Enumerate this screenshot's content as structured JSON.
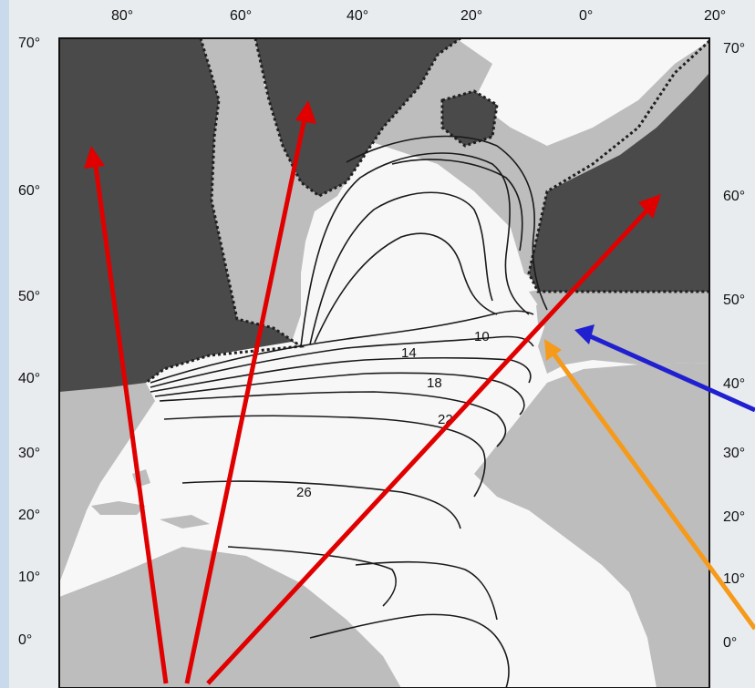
{
  "map": {
    "longitude_labels": [
      "80°",
      "60°",
      "40°",
      "20°",
      "0°",
      "20°"
    ],
    "latitude_labels_left": [
      "70°",
      "60°",
      "50°",
      "40°",
      "30°",
      "20°",
      "10°",
      "0°"
    ],
    "latitude_labels_right": [
      "70°",
      "60°",
      "50°",
      "40°",
      "30°",
      "20°",
      "10°",
      "0°"
    ],
    "isotherm_labels": [
      "10",
      "14",
      "18",
      "22",
      "26"
    ]
  },
  "arrows": [
    {
      "color": "#e00000",
      "target": "north-america-arctic"
    },
    {
      "color": "#e00000",
      "target": "greenland"
    },
    {
      "color": "#e00000",
      "target": "scandinavia"
    },
    {
      "color": "#2020d0",
      "target": "france"
    },
    {
      "color": "#f59a1b",
      "target": "iberia"
    }
  ],
  "colors": {
    "background": "#c9daec",
    "ocean": "#f7f7f7",
    "land_light": "#bdbdbd",
    "land_dark": "#4a4a4a"
  }
}
